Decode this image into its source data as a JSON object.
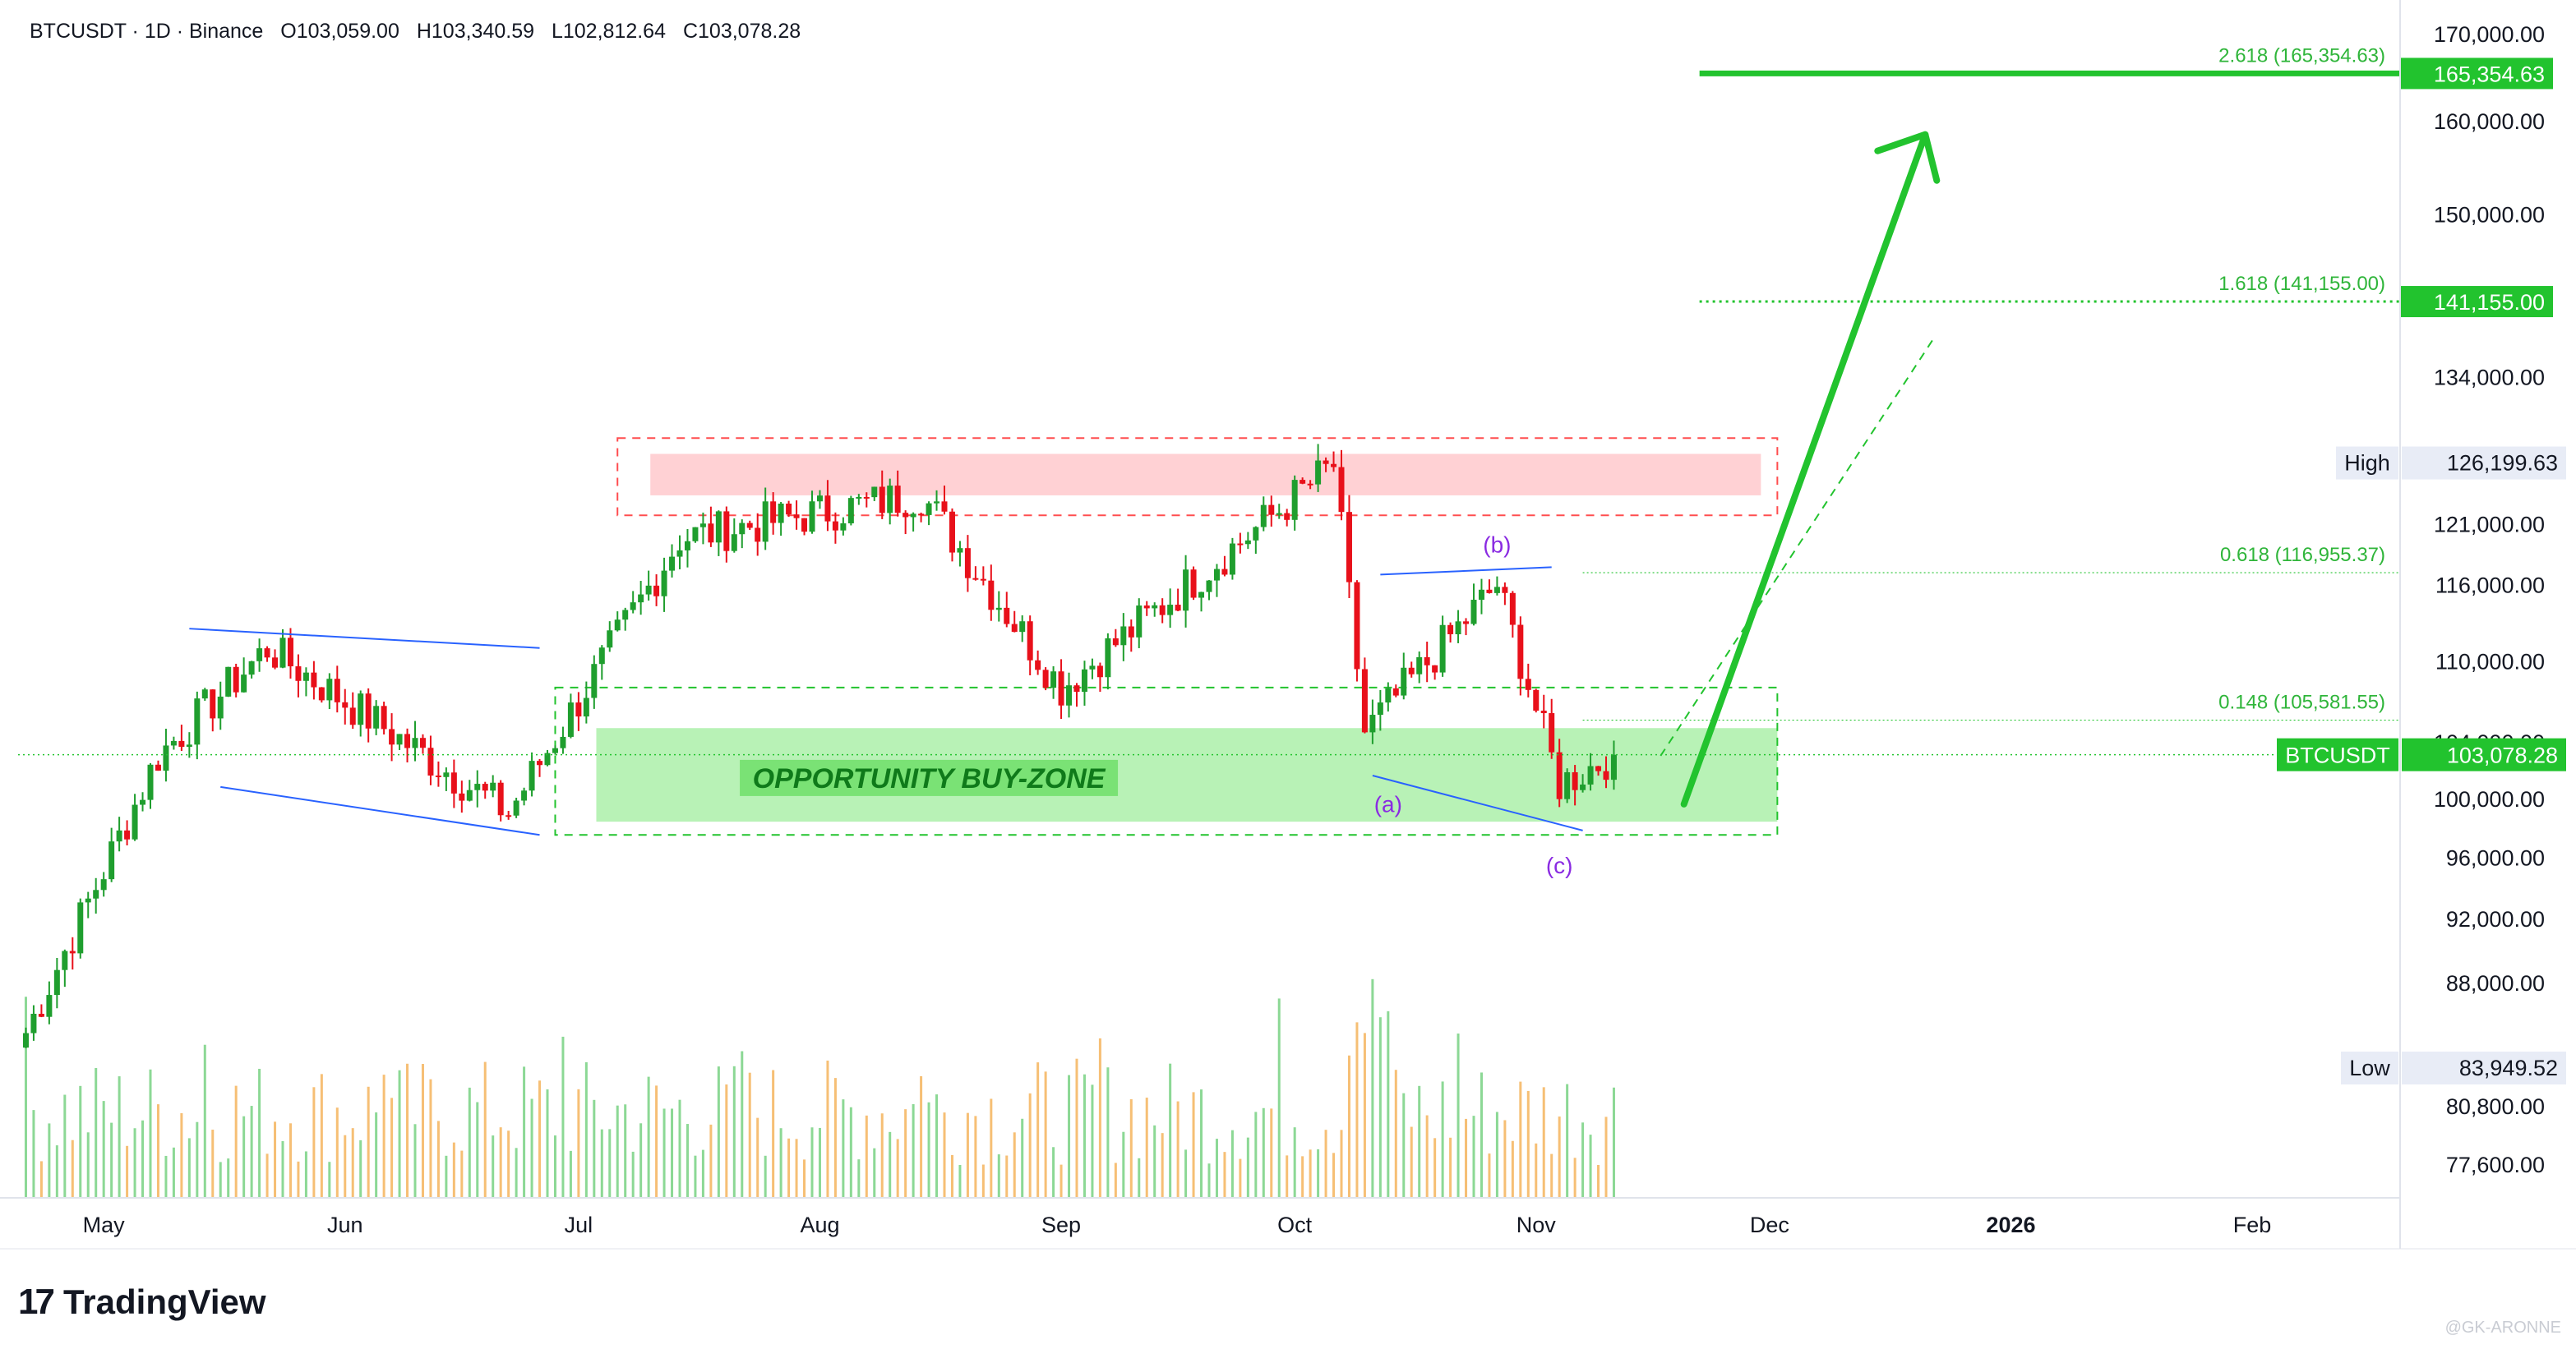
{
  "header": {
    "symbol": "BTCUSDT · 1D · Binance",
    "open": "O103,059.00",
    "high": "H103,340.59",
    "low": "L102,812.64",
    "close": "C103,078.28"
  },
  "branding": {
    "name": "TradingView",
    "mark": "17",
    "watermark": "@GK-ARONNE"
  },
  "colors": {
    "up": "#26a69a",
    "down": "#ef5350",
    "accent": "#22c32e",
    "bearish_zone": "#ff4d4f",
    "pattern": "#2962ff"
  },
  "chart_data": {
    "type": "candlestick",
    "y_scale": "log",
    "ylim": [
      75800,
      174000
    ],
    "y_ticks": [
      "170,000.00",
      "160,000.00",
      "150,000.00",
      "134,000.00",
      "121,000.00",
      "116,000.00",
      "110,000.00",
      "104,000.00",
      "100,000.00",
      "96,000.00",
      "92,000.00",
      "88,000.00",
      "80,800.00",
      "77,600.00"
    ],
    "y_tick_values": [
      170000,
      160000,
      150000,
      134000,
      121000,
      116000,
      110000,
      104000,
      100000,
      96000,
      92000,
      88000,
      80800,
      77600
    ],
    "x_ticks": [
      "May",
      "Jun",
      "Jul",
      "Aug",
      "Sep",
      "Oct",
      "Nov",
      "Dec",
      "2026",
      "Feb"
    ],
    "x_tick_days": [
      0,
      31,
      61,
      92,
      123,
      153,
      184,
      214,
      245,
      276
    ],
    "x_range_days": [
      -11,
      295
    ],
    "last_price": {
      "label": "BTCUSDT",
      "value": "103,078.28",
      "num": 103078.28
    },
    "high_marker": {
      "label": "High",
      "value": "126,199.63",
      "num": 126199.63
    },
    "low_marker": {
      "label": "Low",
      "value": "83,949.52"
    },
    "fib_levels": [
      {
        "label": "2.618 (165,354.63)",
        "value": 165354.63,
        "badge": "165,354.63",
        "style": "solid"
      },
      {
        "label": "1.618 (141,155.00)",
        "value": 141155.0,
        "badge": "141,155.00",
        "style": "dotted"
      },
      {
        "label": "0.618 (116,955.37)",
        "value": 116955.37,
        "style": "faint"
      },
      {
        "label": "0.148 (105,581.55)",
        "value": 105581.55,
        "style": "faint"
      }
    ],
    "annotations": {
      "buy_zone": "OPPORTUNITY BUY-ZONE",
      "wave_a": "(a)",
      "wave_b": "(b)",
      "wave_c": "(c)"
    },
    "key_points": [
      {
        "date": "2025-04-21",
        "close": 85000
      },
      {
        "date": "2025-05-08",
        "close": 103000
      },
      {
        "date": "2025-05-22",
        "close": 111000
      },
      {
        "date": "2025-06-22",
        "close": 99000
      },
      {
        "date": "2025-07-14",
        "close": 119800
      },
      {
        "date": "2025-08-14",
        "close": 123500
      },
      {
        "date": "2025-09-01",
        "close": 108000
      },
      {
        "date": "2025-10-06",
        "close": 126000
      },
      {
        "date": "2025-10-10",
        "close": 104700
      },
      {
        "date": "2025-10-27",
        "close": 116000
      },
      {
        "date": "2025-11-04",
        "close": 101000
      },
      {
        "date": "2025-11-11",
        "close": 103078
      }
    ]
  }
}
